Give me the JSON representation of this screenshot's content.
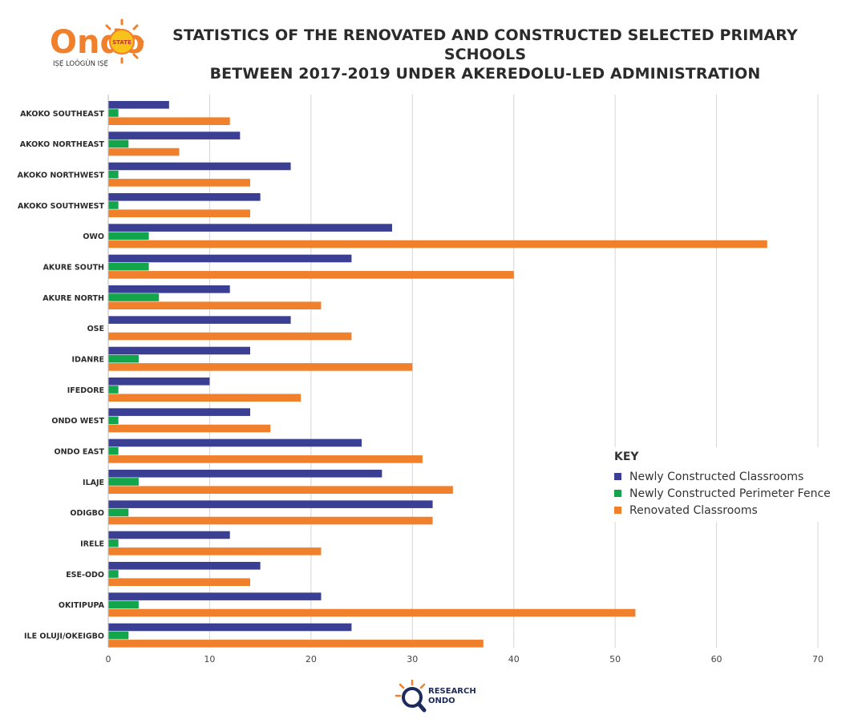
{
  "header": {
    "logo_text": "Ondo",
    "logo_badge": "STATE",
    "logo_tagline": "IṢẸ́ LOÒGÙN IṢẸ́",
    "title_line1": "STATISTICS OF THE RENOVATED AND CONSTRUCTED SELECTED PRIMARY SCHOOLS",
    "title_line2": "BETWEEN 2017-2019 UNDER AKEREDOLU-LED ADMINISTRATION"
  },
  "chart_data": {
    "type": "bar",
    "orientation": "horizontal",
    "categories": [
      "AKOKO SOUTHEAST",
      "AKOKO NORTHEAST",
      "AKOKO NORTHWEST",
      "AKOKO SOUTHWEST",
      "OWO",
      "AKURE SOUTH",
      "AKURE NORTH",
      "OSE",
      "IDANRE",
      "IFEDORE",
      "ONDO WEST",
      "ONDO EAST",
      "ILAJE",
      "ODIGBO",
      "IRELE",
      "ESE-ODO",
      "OKITIPUPA",
      "ILE OLUJI/OKEIGBO"
    ],
    "series": [
      {
        "name": "Newly Constructed Classrooms",
        "color": "#3a3f94",
        "values": [
          6,
          13,
          18,
          15,
          28,
          24,
          12,
          18,
          14,
          10,
          14,
          25,
          27,
          32,
          12,
          15,
          21,
          24
        ]
      },
      {
        "name": "Newly Constructed Perimeter Fence",
        "color": "#12a54b",
        "values": [
          1,
          2,
          1,
          1,
          4,
          4,
          5,
          0,
          3,
          1,
          1,
          1,
          3,
          2,
          1,
          1,
          3,
          2
        ]
      },
      {
        "name": "Renovated Classrooms",
        "color": "#f0802c",
        "values": [
          12,
          7,
          14,
          14,
          65,
          40,
          21,
          24,
          30,
          19,
          16,
          31,
          34,
          32,
          21,
          14,
          52,
          37
        ]
      }
    ],
    "x_ticks": [
      0,
      10,
      20,
      30,
      40,
      50,
      60,
      70
    ],
    "xlim": [
      0,
      70
    ],
    "grid": true,
    "legend_title": "KEY",
    "legend_position": "lower-right"
  },
  "footer": {
    "line1": "RESEARCH",
    "line2": "ONDO"
  }
}
